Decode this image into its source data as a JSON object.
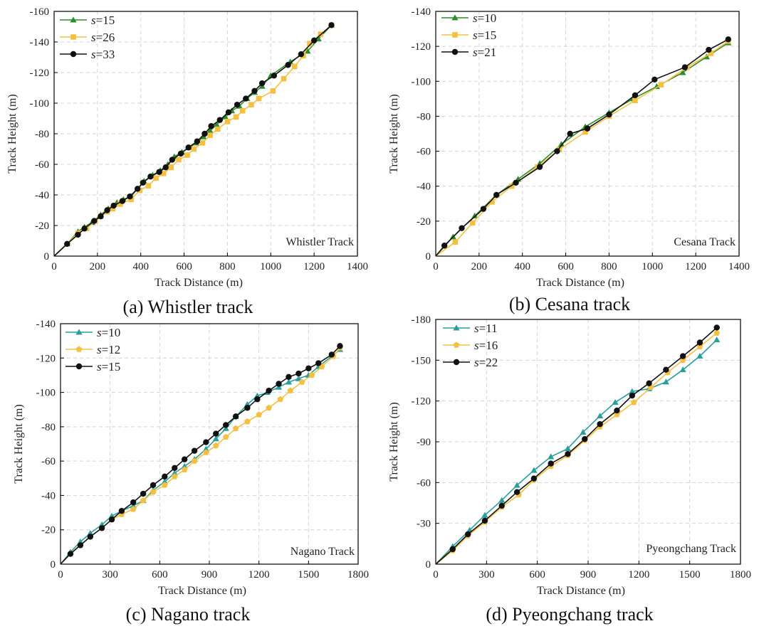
{
  "colors": {
    "green": "#2e8b2a",
    "yellow": "#f5c040",
    "black": "#111111",
    "teal": "#2a9d9d",
    "grid": "#d4d4d4"
  },
  "chart_data": [
    {
      "id": "a",
      "type": "line",
      "caption": "(a) Whistler track",
      "annotation": "Whistler Track",
      "xlabel": "Track Distance (m)",
      "ylabel": "Track Height (m)",
      "xlim": [
        0,
        1400
      ],
      "ylim": [
        0,
        -160
      ],
      "xticks": [
        0,
        200,
        400,
        600,
        800,
        1000,
        1200,
        1400
      ],
      "yticks": [
        0,
        -20,
        -40,
        -60,
        -80,
        -100,
        -120,
        -140,
        -160
      ],
      "grid": true,
      "legend": "top-left",
      "series": [
        {
          "name": "=15",
          "s_label": "s",
          "color": "#2e8b2a",
          "marker": "triangle",
          "x": [
            0,
            60,
            110,
            140,
            175,
            215,
            250,
            290,
            320,
            355,
            385,
            415,
            455,
            490,
            525,
            555,
            590,
            625,
            655,
            690,
            720,
            750,
            790,
            820,
            855,
            890,
            925,
            960,
            1000,
            1090,
            1170,
            1220,
            1280
          ],
          "y": [
            0,
            -8,
            -16,
            -19,
            -22,
            -27,
            -31,
            -35,
            -37,
            -39,
            -44,
            -49,
            -53,
            -56,
            -60,
            -65,
            -68,
            -71,
            -74,
            -78,
            -82,
            -86,
            -91,
            -95,
            -98,
            -103,
            -107,
            -111,
            -118,
            -127,
            -134,
            -142,
            -151
          ]
        },
        {
          "name": "=26",
          "s_label": "s",
          "color": "#f5c040",
          "marker": "square",
          "x": [
            0,
            110,
            150,
            190,
            215,
            245,
            270,
            305,
            355,
            395,
            435,
            470,
            505,
            540,
            575,
            615,
            645,
            685,
            720,
            755,
            800,
            840,
            870,
            910,
            945,
            1010,
            1060,
            1110,
            1150,
            1180,
            1230,
            1280
          ],
          "y": [
            0,
            -15,
            -18,
            -23,
            -26,
            -29,
            -31,
            -34,
            -37,
            -43,
            -46,
            -51,
            -54,
            -58,
            -63,
            -66,
            -70,
            -74,
            -79,
            -83,
            -88,
            -91,
            -95,
            -99,
            -103,
            -108,
            -116,
            -124,
            -131,
            -139,
            -145,
            -151
          ]
        },
        {
          "name": "=33",
          "s_label": "s",
          "color": "#111111",
          "marker": "circle",
          "x": [
            0,
            60,
            110,
            140,
            185,
            215,
            245,
            275,
            315,
            350,
            385,
            410,
            445,
            485,
            515,
            545,
            585,
            620,
            660,
            695,
            725,
            765,
            805,
            845,
            885,
            925,
            960,
            1015,
            1080,
            1140,
            1200,
            1280
          ],
          "y": [
            0,
            -8,
            -14,
            -18,
            -23,
            -26,
            -30,
            -33,
            -36,
            -39,
            -44,
            -48,
            -52,
            -55,
            -58,
            -63,
            -67,
            -71,
            -75,
            -80,
            -85,
            -89,
            -94,
            -99,
            -103,
            -108,
            -113,
            -118,
            -125,
            -132,
            -141,
            -151
          ]
        }
      ]
    },
    {
      "id": "b",
      "type": "line",
      "caption": "(b) Cesana track",
      "annotation": "Cesana Track",
      "xlabel": "Track Distance (m)",
      "ylabel": "Track Height (m)",
      "xlim": [
        0,
        1400
      ],
      "ylim": [
        0,
        -140
      ],
      "xticks": [
        0,
        200,
        400,
        600,
        800,
        1000,
        1200,
        1400
      ],
      "yticks": [
        0,
        -20,
        -40,
        -60,
        -80,
        -100,
        -120,
        -140
      ],
      "grid": true,
      "legend": "top-left",
      "series": [
        {
          "name": "=10",
          "s_label": "s",
          "color": "#2e8b2a",
          "marker": "triangle",
          "x": [
            0,
            80,
            180,
            280,
            380,
            480,
            580,
            690,
            800,
            910,
            1020,
            1140,
            1250,
            1350
          ],
          "y": [
            0,
            -11,
            -23,
            -35,
            -44,
            -53,
            -64,
            -74,
            -82,
            -90,
            -97,
            -105,
            -114,
            -122
          ]
        },
        {
          "name": "=15",
          "s_label": "s",
          "color": "#f5c040",
          "marker": "square",
          "x": [
            0,
            90,
            170,
            260,
            350,
            470,
            570,
            690,
            800,
            920,
            1040,
            1160,
            1270,
            1350
          ],
          "y": [
            0,
            -8,
            -19,
            -31,
            -40,
            -51,
            -61,
            -71,
            -80,
            -89,
            -98,
            -108,
            -116,
            -123
          ]
        },
        {
          "name": "=21",
          "s_label": "s",
          "color": "#111111",
          "marker": "circle",
          "x": [
            0,
            40,
            120,
            220,
            280,
            370,
            480,
            560,
            620,
            700,
            800,
            920,
            1010,
            1150,
            1260,
            1350
          ],
          "y": [
            0,
            -6,
            -16,
            -27,
            -35,
            -42,
            -51,
            -60,
            -70,
            -73,
            -81,
            -92,
            -101,
            -108,
            -118,
            -124
          ]
        }
      ]
    },
    {
      "id": "c",
      "type": "line",
      "caption": "(c) Nagano track",
      "annotation": "Nagano Track",
      "xlabel": "Track Distance (m)",
      "ylabel": "Track Height (m)",
      "xlim": [
        0,
        1800
      ],
      "ylim": [
        0,
        -140
      ],
      "xticks": [
        0,
        300,
        600,
        900,
        1200,
        1500,
        1800
      ],
      "yticks": [
        0,
        -20,
        -40,
        -60,
        -80,
        -100,
        -120,
        -140
      ],
      "grid": true,
      "legend": "top-left",
      "series": [
        {
          "name": "=10",
          "s_label": "s",
          "color": "#2a9d9d",
          "marker": "triangle",
          "x": [
            0,
            60,
            120,
            180,
            250,
            310,
            370,
            440,
            500,
            560,
            630,
            690,
            750,
            810,
            880,
            940,
            1000,
            1060,
            1130,
            1190,
            1250,
            1320,
            1380,
            1440,
            1500,
            1560,
            1640,
            1690
          ],
          "y": [
            0,
            -7,
            -13,
            -18,
            -23,
            -28,
            -31,
            -34,
            -37,
            -43,
            -48,
            -53,
            -57,
            -61,
            -67,
            -73,
            -79,
            -86,
            -93,
            -98,
            -100,
            -103,
            -106,
            -108,
            -110,
            -115,
            -121,
            -125
          ]
        },
        {
          "name": "=12",
          "s_label": "s",
          "color": "#f5c040",
          "marker": "pentagon",
          "x": [
            0,
            60,
            120,
            180,
            250,
            310,
            370,
            440,
            500,
            560,
            630,
            690,
            750,
            810,
            880,
            940,
            1000,
            1060,
            1130,
            1200,
            1260,
            1330,
            1390,
            1460,
            1520,
            1580,
            1650,
            1690
          ],
          "y": [
            0,
            -6,
            -11,
            -16,
            -21,
            -26,
            -29,
            -32,
            -37,
            -42,
            -46,
            -51,
            -55,
            -60,
            -65,
            -69,
            -74,
            -79,
            -83,
            -87,
            -91,
            -96,
            -101,
            -106,
            -110,
            -115,
            -121,
            -126
          ]
        },
        {
          "name": "=15",
          "s_label": "s",
          "color": "#111111",
          "marker": "circle",
          "x": [
            0,
            60,
            120,
            180,
            250,
            310,
            370,
            440,
            500,
            560,
            630,
            690,
            750,
            810,
            880,
            940,
            1000,
            1060,
            1130,
            1190,
            1260,
            1320,
            1380,
            1440,
            1500,
            1560,
            1640,
            1690
          ],
          "y": [
            0,
            -6,
            -11,
            -16,
            -21,
            -26,
            -31,
            -36,
            -41,
            -46,
            -51,
            -56,
            -61,
            -66,
            -71,
            -76,
            -81,
            -86,
            -91,
            -96,
            -101,
            -105,
            -109,
            -111,
            -114,
            -117,
            -122,
            -127
          ]
        }
      ]
    },
    {
      "id": "d",
      "type": "line",
      "caption": "(d) Pyeongchang track",
      "annotation": "Pyeongchang Track",
      "xlabel": "Track Distance (m)",
      "ylabel": "Track Height (m)",
      "xlim": [
        0,
        1800
      ],
      "ylim": [
        0,
        -180
      ],
      "xticks": [
        0,
        300,
        600,
        900,
        1200,
        1500,
        1800
      ],
      "yticks": [
        0,
        -30,
        -60,
        -90,
        -120,
        -150,
        -180
      ],
      "grid": true,
      "legend": "top-left",
      "series": [
        {
          "name": "=11",
          "s_label": "s",
          "color": "#2a9d9d",
          "marker": "triangle",
          "x": [
            0,
            100,
            200,
            290,
            390,
            480,
            580,
            680,
            780,
            870,
            970,
            1060,
            1160,
            1260,
            1360,
            1460,
            1560,
            1660
          ],
          "y": [
            0,
            -13,
            -25,
            -36,
            -47,
            -58,
            -69,
            -79,
            -85,
            -97,
            -109,
            -119,
            -127,
            -129,
            -134,
            -143,
            -153,
            -165
          ]
        },
        {
          "name": "=16",
          "s_label": "s",
          "color": "#f5c040",
          "marker": "pentagon",
          "x": [
            0,
            100,
            190,
            290,
            390,
            490,
            580,
            680,
            780,
            880,
            970,
            1070,
            1170,
            1270,
            1370,
            1460,
            1560,
            1660
          ],
          "y": [
            0,
            -10,
            -21,
            -31,
            -42,
            -51,
            -62,
            -72,
            -80,
            -91,
            -101,
            -110,
            -119,
            -130,
            -141,
            -150,
            -160,
            -170
          ]
        },
        {
          "name": "=22",
          "s_label": "s",
          "color": "#111111",
          "marker": "circle",
          "x": [
            0,
            100,
            190,
            290,
            390,
            480,
            580,
            680,
            780,
            880,
            970,
            1070,
            1160,
            1260,
            1360,
            1460,
            1560,
            1660
          ],
          "y": [
            0,
            -11,
            -22,
            -32,
            -43,
            -53,
            -63,
            -74,
            -81,
            -92,
            -103,
            -113,
            -124,
            -133,
            -143,
            -153,
            -163,
            -174
          ]
        }
      ]
    }
  ]
}
